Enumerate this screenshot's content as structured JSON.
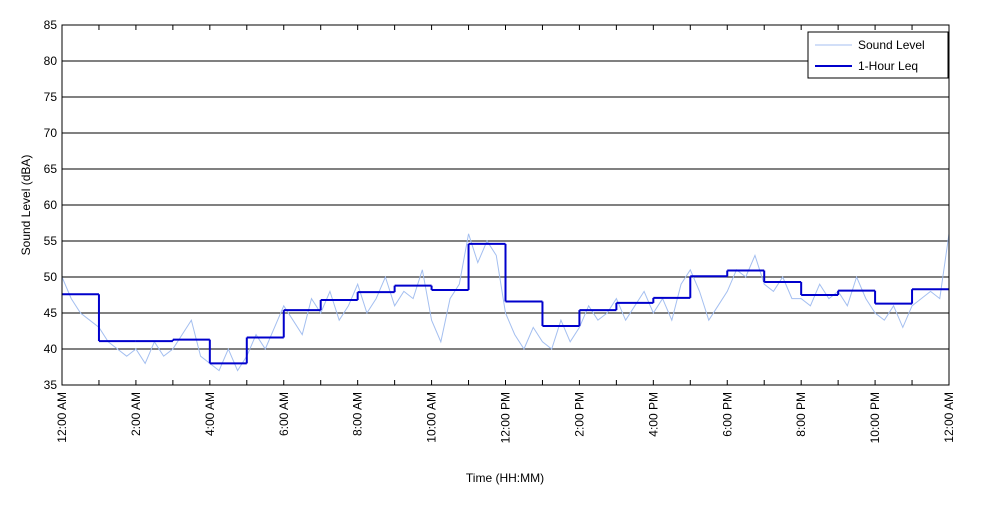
{
  "chart_data": {
    "type": "line",
    "xlabel": "Time (HH:MM)",
    "ylabel": "Sound Level (dBA)",
    "xlim": [
      0,
      24
    ],
    "ylim": [
      35,
      85
    ],
    "yticks": [
      35,
      40,
      45,
      50,
      55,
      60,
      65,
      70,
      75,
      80,
      85
    ],
    "xticks": [
      {
        "value": 0,
        "label": "12:00 AM"
      },
      {
        "value": 2,
        "label": "2:00 AM"
      },
      {
        "value": 4,
        "label": "4:00 AM"
      },
      {
        "value": 6,
        "label": "6:00 AM"
      },
      {
        "value": 8,
        "label": "8:00 AM"
      },
      {
        "value": 10,
        "label": "10:00 AM"
      },
      {
        "value": 12,
        "label": "12:00 PM"
      },
      {
        "value": 14,
        "label": "2:00 PM"
      },
      {
        "value": 16,
        "label": "4:00 PM"
      },
      {
        "value": 18,
        "label": "6:00 PM"
      },
      {
        "value": 20,
        "label": "8:00 PM"
      },
      {
        "value": 22,
        "label": "10:00 PM"
      },
      {
        "value": 24,
        "label": "12:00 AM"
      }
    ],
    "xminorticks": [
      1,
      3,
      5,
      7,
      9,
      11,
      13,
      15,
      17,
      19,
      21,
      23
    ],
    "grid": true,
    "legend": "upper right",
    "series": [
      {
        "name": "Sound Level",
        "color": "#a4bff0",
        "style": "line",
        "x": [
          0,
          0.25,
          0.5,
          0.75,
          1,
          1.25,
          1.5,
          1.75,
          2,
          2.25,
          2.5,
          2.75,
          3,
          3.25,
          3.5,
          3.75,
          4,
          4.25,
          4.5,
          4.75,
          5,
          5.25,
          5.5,
          5.75,
          6,
          6.25,
          6.5,
          6.75,
          7,
          7.25,
          7.5,
          7.75,
          8,
          8.25,
          8.5,
          8.75,
          9,
          9.25,
          9.5,
          9.75,
          10,
          10.25,
          10.5,
          10.75,
          11,
          11.25,
          11.5,
          11.75,
          12,
          12.25,
          12.5,
          12.75,
          13,
          13.25,
          13.5,
          13.75,
          14,
          14.25,
          14.5,
          14.75,
          15,
          15.25,
          15.5,
          15.75,
          16,
          16.25,
          16.5,
          16.75,
          17,
          17.25,
          17.5,
          17.75,
          18,
          18.25,
          18.5,
          18.75,
          19,
          19.25,
          19.5,
          19.75,
          20,
          20.25,
          20.5,
          20.75,
          21,
          21.25,
          21.5,
          21.75,
          22,
          22.25,
          22.5,
          22.75,
          23,
          23.25,
          23.5,
          23.75,
          24
        ],
        "values": [
          50,
          47,
          45,
          44,
          43,
          41,
          40,
          39,
          40,
          38,
          41,
          39,
          40,
          42,
          44,
          39,
          38,
          37,
          40,
          37,
          39,
          42,
          40,
          43,
          46,
          44,
          42,
          47,
          45,
          48,
          44,
          46,
          49,
          45,
          47,
          50,
          46,
          48,
          47,
          51,
          44,
          41,
          47,
          49,
          56,
          52,
          55,
          53,
          45,
          42,
          40,
          43,
          41,
          40,
          44,
          41,
          43,
          46,
          44,
          45,
          47,
          44,
          46,
          48,
          45,
          47,
          44,
          49,
          51,
          48,
          44,
          46,
          48,
          51,
          50,
          53,
          49,
          48,
          50,
          47,
          47,
          46,
          49,
          47,
          48,
          46,
          50,
          47,
          45,
          44,
          46,
          43,
          46,
          47,
          48,
          47,
          56
        ]
      },
      {
        "name": "1-Hour Leq",
        "color": "#0000cc",
        "style": "step",
        "x": [
          0,
          1,
          2,
          3,
          4,
          5,
          6,
          7,
          8,
          9,
          10,
          11,
          12,
          13,
          14,
          15,
          16,
          17,
          18,
          19,
          20,
          21,
          22,
          23
        ],
        "values": [
          47.6,
          41.1,
          41.1,
          41.3,
          38.0,
          41.6,
          45.4,
          46.8,
          47.9,
          48.8,
          48.2,
          54.6,
          46.6,
          43.2,
          45.4,
          46.4,
          47.1,
          50.1,
          50.9,
          49.3,
          47.5,
          48.1,
          46.3,
          48.3
        ]
      }
    ]
  }
}
